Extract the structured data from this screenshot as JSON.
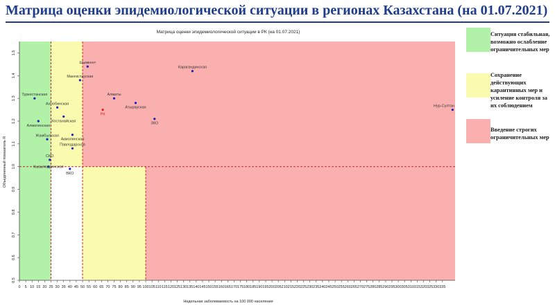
{
  "slide_title": "Матрица оценки эпидемиологической ситуации в регионах Казахстана (на 01.07.2021)",
  "colors": {
    "green_zone": "#b2f2a8",
    "yellow_zone": "#fbfbb0",
    "red_zone": "#fbb0b0",
    "title_blue": "#1f3d8a",
    "point_blue": "#1f1fb8",
    "rk_red": "#e02020",
    "threshold_line": "#c0282b"
  },
  "legend": [
    {
      "color": "#b2f2a8",
      "text": "Ситуация стабильная, возможно ослабление ограничительных мер"
    },
    {
      "color": "#fbfbb0",
      "text": "Сохранение действующих карантинных мер и усиление контроля за их соблюдением"
    },
    {
      "color": "#fbb0b0",
      "text": "Введение строгих ограничительных мер"
    }
  ],
  "chart_data": {
    "type": "scatter",
    "title": "Матрица оценки эпидемиологической ситуации в РК (на 01.07.2021)",
    "xlabel": "Недельная заболеваемость на 100 000 населения",
    "ylabel": "Объединенный показатель R",
    "xlim": [
      0,
      345
    ],
    "ylim": [
      0.5,
      1.55
    ],
    "x_ticks": [
      0,
      5,
      10,
      15,
      20,
      25,
      30,
      35,
      40,
      45,
      50,
      55,
      60,
      65,
      70,
      75,
      80,
      85,
      90,
      95,
      100,
      105,
      110,
      115,
      120,
      125,
      130,
      135,
      140,
      145,
      150,
      155,
      160,
      165,
      170,
      175,
      180,
      185,
      190,
      195,
      200,
      205,
      210,
      215,
      220,
      225,
      230,
      235,
      240,
      245,
      250,
      255,
      260,
      265,
      270,
      275,
      280,
      285,
      290,
      295,
      300,
      305,
      310,
      315,
      320,
      325,
      330,
      335
    ],
    "y_ticks": [
      0.5,
      0.6,
      0.7,
      0.8,
      0.9,
      1.0,
      1.1,
      1.2,
      1.3,
      1.4,
      1.5
    ],
    "zones": [
      {
        "name": "green",
        "x": [
          0,
          25
        ],
        "y": [
          0.5,
          1.55
        ]
      },
      {
        "name": "yellow",
        "x": [
          25,
          50
        ],
        "y": [
          1.0,
          1.55
        ]
      },
      {
        "name": "yellow",
        "x": [
          50,
          100
        ],
        "y": [
          0.5,
          1.0
        ]
      },
      {
        "name": "red",
        "x": [
          50,
          345
        ],
        "y": [
          1.0,
          1.55
        ]
      },
      {
        "name": "red",
        "x": [
          100,
          345
        ],
        "y": [
          0.5,
          1.0
        ]
      }
    ],
    "threshold_r": 1.0,
    "points": [
      {
        "label": "Туркестанская",
        "x": 12,
        "y": 1.3,
        "label_pos": "above"
      },
      {
        "label": "Актюбинская",
        "x": 30,
        "y": 1.26,
        "label_pos": "above"
      },
      {
        "label": "Алматинская",
        "x": 15,
        "y": 1.2,
        "label_pos": "below"
      },
      {
        "label": "Костанайская",
        "x": 35,
        "y": 1.22,
        "label_pos": "below"
      },
      {
        "label": "Жамбылская",
        "x": 22,
        "y": 1.12,
        "label_pos": "above"
      },
      {
        "label": "Акмолинская",
        "x": 42,
        "y": 1.14,
        "label_pos": "below"
      },
      {
        "label": "Павлодарская",
        "x": 42,
        "y": 1.08,
        "label_pos": "above"
      },
      {
        "label": "СКО",
        "x": 24,
        "y": 1.03,
        "label_pos": "above"
      },
      {
        "label": "Кызылординская",
        "x": 23,
        "y": 1.0,
        "label_pos": "center"
      },
      {
        "label": "ВКО",
        "x": 40,
        "y": 0.99,
        "label_pos": "below"
      },
      {
        "label": "Мангистауская",
        "x": 48,
        "y": 1.38,
        "label_pos": "above"
      },
      {
        "label": "Шымкент",
        "x": 54,
        "y": 1.44,
        "label_pos": "above"
      },
      {
        "label": "РК",
        "x": 66,
        "y": 1.25,
        "label_pos": "below",
        "highlight": true
      },
      {
        "label": "Алматы",
        "x": 75,
        "y": 1.3,
        "label_pos": "above"
      },
      {
        "label": "Атырауская",
        "x": 92,
        "y": 1.28,
        "label_pos": "below"
      },
      {
        "label": "ЗКО",
        "x": 107,
        "y": 1.21,
        "label_pos": "below"
      },
      {
        "label": "Карагандинская",
        "x": 137,
        "y": 1.42,
        "label_pos": "above"
      },
      {
        "label": "Нур-Султан",
        "x": 343,
        "y": 1.25,
        "label_pos": "above"
      }
    ]
  }
}
